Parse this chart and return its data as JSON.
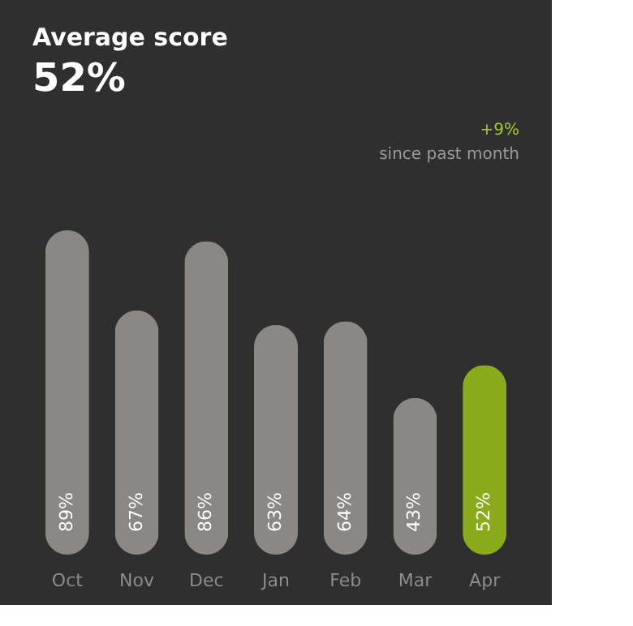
{
  "chart_data": {
    "type": "bar",
    "title": "Average score",
    "subtitle": "52%",
    "annotations": [
      "+9%",
      "since past month"
    ],
    "categories": [
      "Oct",
      "Nov",
      "Dec",
      "Jan",
      "Feb",
      "Mar",
      "Apr"
    ],
    "values": [
      89,
      67,
      86,
      63,
      64,
      43,
      52
    ],
    "colors": [
      "#8a8884",
      "#8a8884",
      "#8a8884",
      "#8a8884",
      "#8a8884",
      "#8a8884",
      "#8aab1c"
    ],
    "value_labels": [
      "89%",
      "67%",
      "86%",
      "63%",
      "64%",
      "43%",
      "52%"
    ],
    "grid": false
  }
}
